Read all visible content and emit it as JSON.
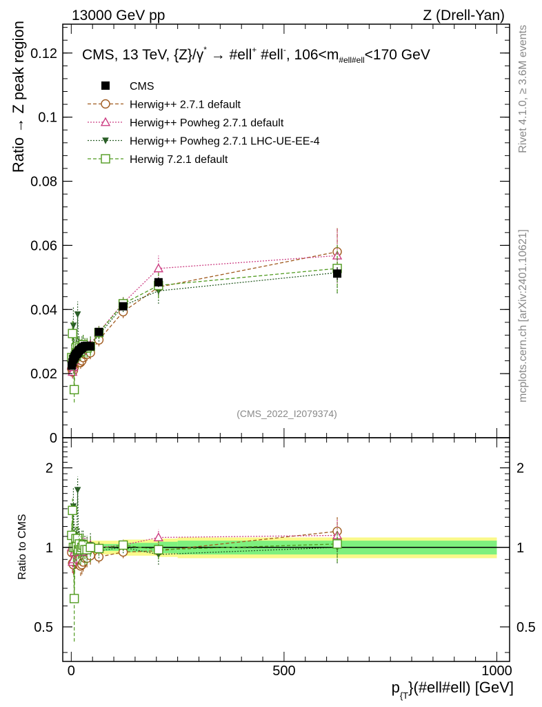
{
  "header": {
    "left": "13000 GeV pp",
    "right": "Z (Drell-Yan)"
  },
  "side": {
    "rivet": "Rivet 4.1.0, ≥ 3.6M events",
    "mcplots": "mcplots.cern.ch [arXiv:2401.10621]"
  },
  "chart_data": [
    {
      "type": "line",
      "panel": "main",
      "title": "CMS, 13 TeV, {Z}/γ* → #ell+ #ell-, 106<m#ell#ell<170 GeV",
      "title_parts": {
        "a": "CMS, 13 TeV, {Z}/γ",
        "a_sup": "*",
        "b": " →  #ell",
        "b_sup": "+",
        "c": " #ell",
        "c_sup": "-",
        "d": ", 106<m",
        "d_sub": "#ell#ell",
        "e": "<170 GeV"
      },
      "ylabel": "Ratio → Z peak region",
      "watermark": "(CMS_2022_I2079374)",
      "xlim": [
        -20,
        1030
      ],
      "ylim": [
        0,
        0.129
      ],
      "yticks": [
        0,
        0.02,
        0.04,
        0.06,
        0.08,
        0.1,
        0.12
      ],
      "ytick_labels": [
        "0",
        "0.02",
        "0.04",
        "0.06",
        "0.08",
        "0.1",
        "0.12"
      ],
      "series": [
        {
          "name": "CMS",
          "color": "#000000",
          "marker": "square-filled",
          "line": "none",
          "x": [
            1,
            3,
            5,
            7,
            9,
            11,
            13,
            15,
            17,
            19,
            22,
            25,
            28,
            32,
            37,
            45,
            65,
            122,
            205,
            625
          ],
          "y": [
            0.0225,
            0.0235,
            0.0245,
            0.025,
            0.0255,
            0.026,
            0.0262,
            0.0265,
            0.027,
            0.0273,
            0.0276,
            0.028,
            0.0283,
            0.0286,
            0.0287,
            0.0285,
            0.033,
            0.041,
            0.0485,
            0.0512
          ],
          "yerr": [
            0.001,
            0.001,
            0.001,
            0.001,
            0.001,
            0.001,
            0.001,
            0.001,
            0.001,
            0.001,
            0.001,
            0.001,
            0.001,
            0.001,
            0.001,
            0.001,
            0.001,
            0.0012,
            0.0015,
            0.002
          ]
        },
        {
          "name": "Herwig++ 2.7.1 default",
          "color": "#a05a1e",
          "marker": "circle-open",
          "line": "dashed",
          "x": [
            1,
            3,
            5,
            7,
            9,
            11,
            13,
            15,
            17,
            19,
            22,
            25,
            28,
            32,
            37,
            45,
            65,
            122,
            205,
            625
          ],
          "y": [
            0.0215,
            0.0205,
            0.021,
            0.022,
            0.023,
            0.0235,
            0.024,
            0.025,
            0.0245,
            0.0245,
            0.0235,
            0.024,
            0.025,
            0.026,
            0.026,
            0.0265,
            0.0305,
            0.0393,
            0.047,
            0.058
          ],
          "yerr": [
            0.002,
            0.002,
            0.002,
            0.002,
            0.002,
            0.002,
            0.002,
            0.002,
            0.002,
            0.002,
            0.002,
            0.002,
            0.002,
            0.002,
            0.002,
            0.002,
            0.002,
            0.002,
            0.003,
            0.0075
          ]
        },
        {
          "name": "Herwig++ Powheg 2.7.1 default",
          "color": "#cc3d82",
          "marker": "triangle-open",
          "line": "dotted",
          "x": [
            1,
            3,
            5,
            7,
            9,
            11,
            13,
            15,
            17,
            19,
            22,
            25,
            28,
            32,
            37,
            45,
            65,
            122,
            205,
            625
          ],
          "y": [
            0.0225,
            0.0205,
            0.022,
            0.024,
            0.025,
            0.026,
            0.0275,
            0.027,
            0.0285,
            0.027,
            0.028,
            0.027,
            0.0285,
            0.029,
            0.029,
            0.029,
            0.033,
            0.042,
            0.0528,
            0.0568
          ],
          "yerr": [
            0.002,
            0.002,
            0.002,
            0.002,
            0.002,
            0.002,
            0.002,
            0.002,
            0.002,
            0.002,
            0.002,
            0.002,
            0.002,
            0.002,
            0.002,
            0.002,
            0.002,
            0.002,
            0.004,
            0.0085
          ]
        },
        {
          "name": "Herwig++ Powheg 2.7.1 LHC-UE-EE-4",
          "color": "#2a5e27",
          "marker": "triangle-down-filled",
          "line": "dotted",
          "x": [
            1,
            3,
            5,
            7,
            9,
            11,
            13,
            15,
            17,
            19,
            22,
            25,
            28,
            32,
            37,
            45,
            65,
            122,
            205,
            625
          ],
          "y": [
            0.0245,
            0.0255,
            0.035,
            0.028,
            0.027,
            0.0275,
            0.028,
            0.0385,
            0.0285,
            0.029,
            0.028,
            0.029,
            0.0295,
            0.0285,
            0.0285,
            0.029,
            0.032,
            0.0412,
            0.0458,
            0.0515
          ],
          "yerr": [
            0.002,
            0.002,
            0.006,
            0.003,
            0.003,
            0.003,
            0.003,
            0.004,
            0.003,
            0.003,
            0.003,
            0.003,
            0.003,
            0.003,
            0.003,
            0.003,
            0.002,
            0.002,
            0.004,
            0.0065
          ]
        },
        {
          "name": "Herwig 7.2.1 default",
          "color": "#4f9a1e",
          "marker": "square-open",
          "line": "dashed",
          "x": [
            1,
            3,
            5,
            7,
            9,
            11,
            13,
            15,
            17,
            19,
            22,
            25,
            28,
            32,
            37,
            45,
            65,
            122,
            205,
            625
          ],
          "y": [
            0.025,
            0.0325,
            0.0245,
            0.015,
            0.0255,
            0.028,
            0.0265,
            0.0285,
            0.0265,
            0.028,
            0.027,
            0.028,
            0.029,
            0.028,
            0.028,
            0.0285,
            0.0328,
            0.0418,
            0.0475,
            0.0528
          ],
          "yerr": [
            0.003,
            0.004,
            0.003,
            0.004,
            0.003,
            0.003,
            0.003,
            0.003,
            0.003,
            0.003,
            0.003,
            0.003,
            0.003,
            0.003,
            0.003,
            0.003,
            0.002,
            0.002,
            0.004,
            0.0075
          ]
        }
      ]
    },
    {
      "type": "line",
      "panel": "ratio",
      "ylabel": "Ratio to CMS",
      "xlabel": "p_{T}(#ell#ell) [GeV]",
      "xlabel_parts": {
        "a": "p",
        "a_sub": "{T",
        "b": "}(#ell#ell) [GeV]"
      },
      "xlim": [
        -20,
        1030
      ],
      "ylim_log": [
        0.37,
        2.6
      ],
      "yticks": [
        0.5,
        1,
        2
      ],
      "ytick_labels": [
        "0.5",
        "1",
        "2"
      ],
      "xticks": [
        0,
        500,
        1000
      ],
      "xtick_labels": [
        "0",
        "500",
        "1000"
      ],
      "band_bins": [
        0,
        65,
        122,
        205,
        250,
        1000
      ],
      "band_inner": [
        0.03,
        0.03,
        0.04,
        0.05,
        0.06
      ],
      "band_outer": [
        0.06,
        0.06,
        0.07,
        0.08,
        0.09
      ],
      "band_colors": {
        "inner": "#7ef07e",
        "outer": "#f9f98a"
      },
      "series": [
        {
          "name": "Herwig++ 2.7.1 default",
          "color": "#a05a1e",
          "marker": "circle-open",
          "line": "dashed",
          "x": [
            1,
            3,
            5,
            7,
            9,
            11,
            13,
            15,
            17,
            19,
            22,
            25,
            28,
            32,
            37,
            45,
            65,
            122,
            205,
            625
          ],
          "y": [
            0.955,
            0.87,
            0.86,
            0.88,
            0.9,
            0.9,
            0.92,
            0.94,
            0.91,
            0.9,
            0.85,
            0.86,
            0.88,
            0.91,
            0.91,
            0.93,
            0.92,
            0.96,
            0.97,
            1.15
          ],
          "yerr": [
            0.07,
            0.07,
            0.07,
            0.07,
            0.07,
            0.07,
            0.07,
            0.07,
            0.07,
            0.07,
            0.07,
            0.07,
            0.07,
            0.07,
            0.07,
            0.07,
            0.05,
            0.05,
            0.06,
            0.15
          ]
        },
        {
          "name": "Herwig++ Powheg 2.7.1 default",
          "color": "#cc3d82",
          "marker": "triangle-open",
          "line": "dotted",
          "x": [
            1,
            3,
            5,
            7,
            9,
            11,
            13,
            15,
            17,
            19,
            22,
            25,
            28,
            32,
            37,
            45,
            65,
            122,
            205,
            625
          ],
          "y": [
            1.0,
            0.88,
            0.9,
            0.96,
            0.98,
            1.0,
            1.05,
            1.02,
            1.06,
            0.99,
            1.01,
            0.96,
            1.01,
            1.01,
            1.01,
            1.02,
            1.0,
            1.02,
            1.09,
            1.11
          ],
          "yerr": [
            0.08,
            0.08,
            0.08,
            0.08,
            0.08,
            0.08,
            0.08,
            0.08,
            0.08,
            0.08,
            0.08,
            0.08,
            0.08,
            0.08,
            0.08,
            0.08,
            0.05,
            0.05,
            0.08,
            0.17
          ]
        },
        {
          "name": "Herwig++ Powheg 2.7.1 LHC-UE-EE-4",
          "color": "#2a5e27",
          "marker": "triangle-down-filled",
          "line": "dotted",
          "x": [
            1,
            3,
            5,
            7,
            9,
            11,
            13,
            15,
            17,
            19,
            22,
            25,
            28,
            32,
            37,
            45,
            65,
            122,
            205,
            625
          ],
          "y": [
            1.09,
            1.09,
            1.43,
            1.12,
            1.06,
            1.06,
            1.07,
            1.65,
            1.06,
            1.06,
            1.01,
            1.04,
            1.04,
            1.0,
            0.99,
            1.02,
            0.97,
            1.0,
            0.94,
            1.0
          ],
          "yerr": [
            0.1,
            0.1,
            0.25,
            0.12,
            0.12,
            0.12,
            0.12,
            0.2,
            0.12,
            0.12,
            0.12,
            0.12,
            0.12,
            0.12,
            0.12,
            0.12,
            0.06,
            0.05,
            0.08,
            0.13
          ]
        },
        {
          "name": "Herwig 7.2.1 default",
          "color": "#4f9a1e",
          "marker": "square-open",
          "line": "dashed",
          "x": [
            1,
            3,
            5,
            7,
            9,
            11,
            13,
            15,
            17,
            19,
            22,
            25,
            28,
            32,
            37,
            45,
            65,
            122,
            205,
            625
          ],
          "y": [
            1.11,
            1.38,
            1.0,
            0.64,
            1.0,
            1.08,
            1.01,
            1.08,
            0.98,
            1.03,
            0.98,
            1.0,
            1.02,
            0.98,
            0.98,
            1.0,
            0.99,
            1.02,
            0.98,
            1.03
          ],
          "yerr": [
            0.12,
            0.15,
            0.12,
            0.2,
            0.12,
            0.12,
            0.12,
            0.12,
            0.12,
            0.12,
            0.12,
            0.12,
            0.12,
            0.12,
            0.12,
            0.12,
            0.06,
            0.05,
            0.08,
            0.15
          ]
        }
      ]
    }
  ]
}
